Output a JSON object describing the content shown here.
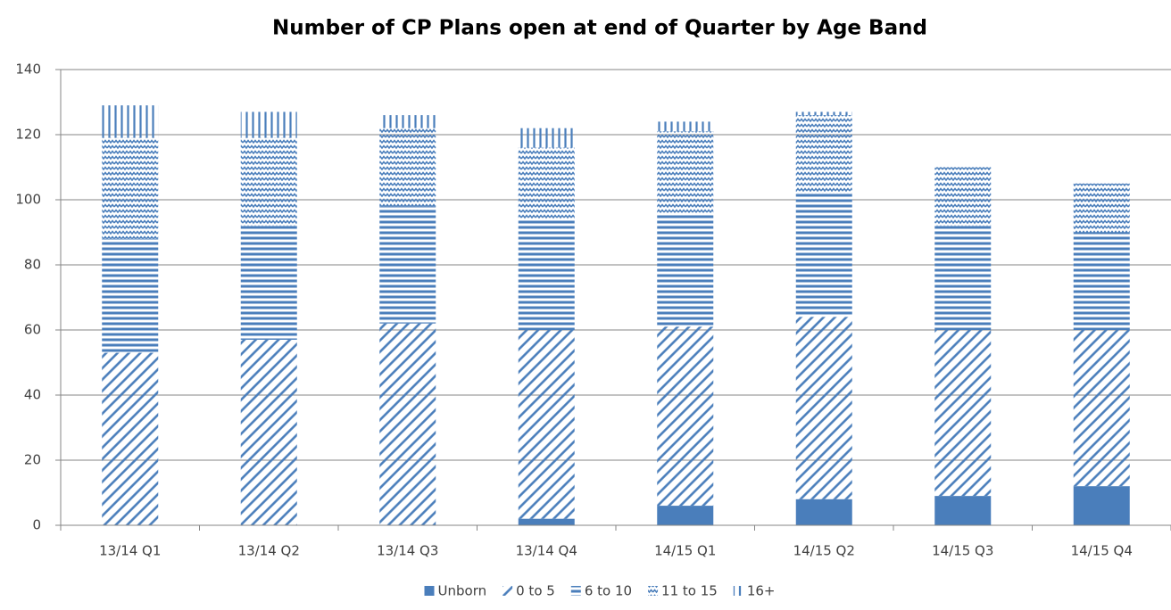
{
  "chart_data": {
    "type": "stacked_bar",
    "title": "Number of CP Plans open at end of Quarter by Age Band",
    "categories": [
      "13/14 Q1",
      "13/14 Q2",
      "13/14 Q3",
      "13/14 Q4",
      "14/15 Q1",
      "14/15 Q2",
      "14/15 Q3",
      "14/15 Q4"
    ],
    "series": [
      {
        "name": "Unborn",
        "color": "#4a7ebb",
        "pattern": "solid",
        "values": [
          0,
          0,
          0,
          2,
          6,
          8,
          9,
          12
        ]
      },
      {
        "name": "0 to 5",
        "color": "#4a7ebb",
        "pattern": "diagonal",
        "values": [
          53,
          57,
          62,
          58,
          55,
          56,
          51,
          48
        ]
      },
      {
        "name": "6 to 10",
        "color": "#4a7ebb",
        "pattern": "horizontal",
        "values": [
          35,
          35,
          36,
          34,
          35,
          38,
          32,
          30
        ]
      },
      {
        "name": "11 to 15",
        "color": "#4a7ebb",
        "pattern": "wave",
        "values": [
          31,
          27,
          24,
          22,
          25,
          24,
          18,
          15
        ]
      },
      {
        "name": "16+",
        "color": "#4a7ebb",
        "pattern": "vertical",
        "values": [
          10,
          8,
          4,
          6,
          3,
          1,
          0,
          0
        ]
      }
    ],
    "ylim": [
      0,
      140
    ],
    "yticks": [
      0,
      20,
      40,
      60,
      80,
      100,
      120,
      140
    ],
    "grid": true,
    "legend": "bottom"
  }
}
